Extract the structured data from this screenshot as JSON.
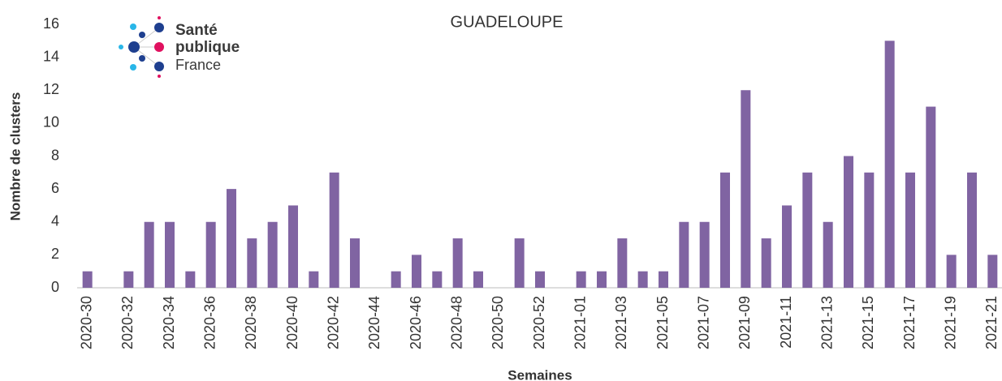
{
  "chart_data": {
    "type": "bar",
    "title": "GUADELOUPE",
    "logo": {
      "line1": "Santé",
      "line2": "publique",
      "line3": "France"
    },
    "x_label": "Semaines",
    "y_label": "Nombre de clusters",
    "categories": [
      "2020-30",
      null,
      "2020-32",
      null,
      "2020-34",
      null,
      "2020-36",
      null,
      "2020-38",
      null,
      "2020-40",
      null,
      "2020-42",
      null,
      "2020-44",
      null,
      "2020-46",
      null,
      "2020-48",
      null,
      "2020-50",
      null,
      "2020-52",
      null,
      "2021-01",
      null,
      "2021-03",
      null,
      "2021-05",
      null,
      "2021-07",
      null,
      "2021-09",
      null,
      "2021-11",
      null,
      "2021-13",
      null,
      "2021-15",
      null,
      "2021-17",
      null,
      "2021-19",
      null,
      "2021-21"
    ],
    "values": [
      1,
      0,
      1,
      4,
      4,
      1,
      4,
      6,
      3,
      4,
      5,
      1,
      7,
      3,
      0,
      1,
      2,
      1,
      3,
      1,
      0,
      3,
      1,
      0,
      1,
      1,
      3,
      1,
      1,
      4,
      4,
      7,
      12,
      3,
      5,
      7,
      4,
      8,
      7,
      15,
      7,
      11,
      2,
      7,
      2
    ],
    "color": "#8064a2",
    "ylim": [
      0,
      16
    ],
    "yticks": [
      0,
      2,
      4,
      6,
      8,
      10,
      12,
      14,
      16
    ],
    "grid": false
  }
}
